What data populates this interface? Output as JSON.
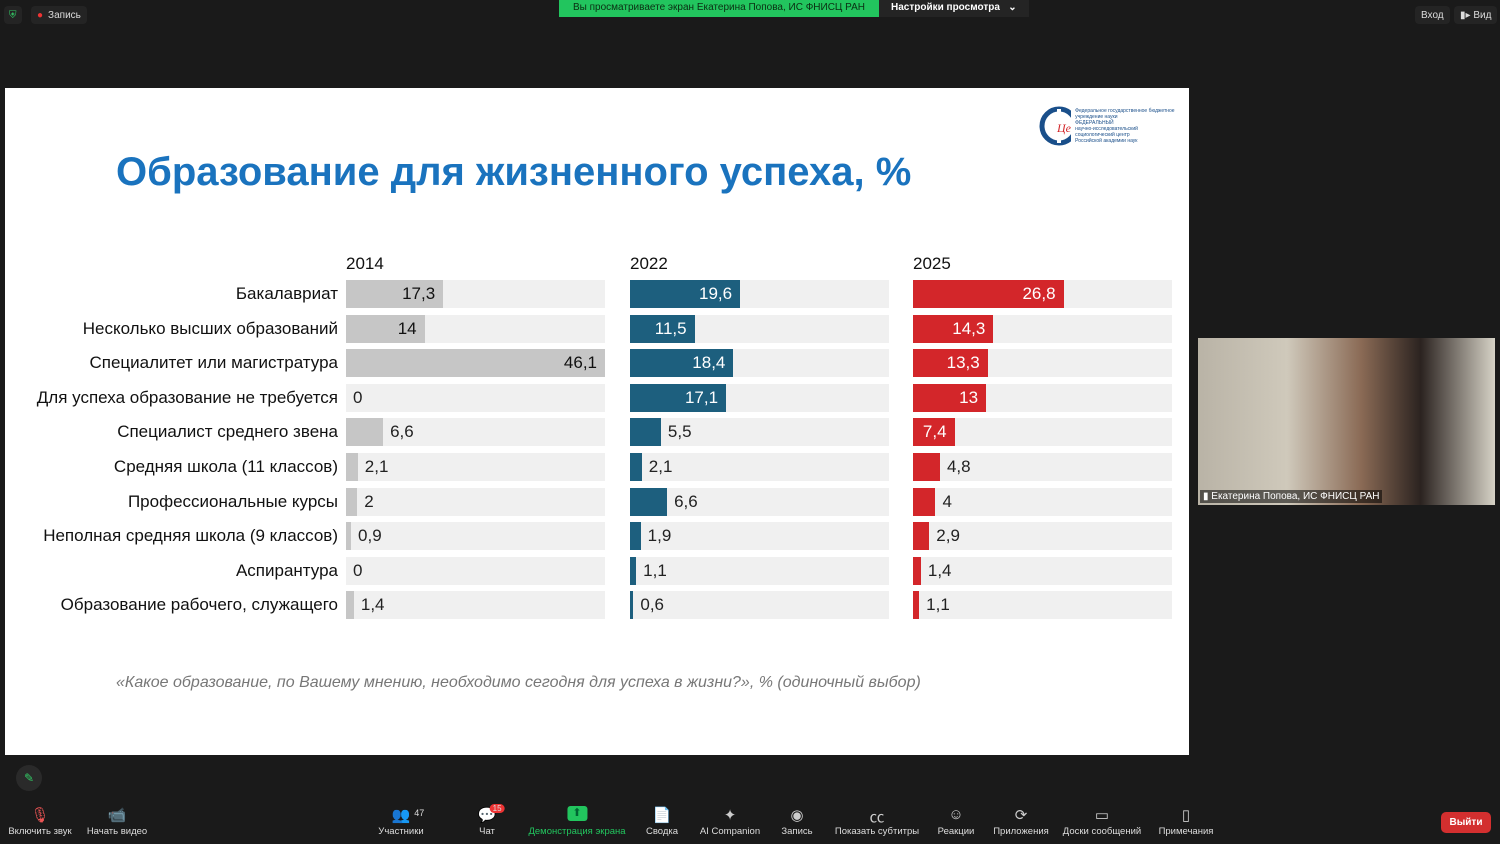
{
  "topbar": {
    "record_label": "Запись",
    "banner_text": "Вы просматриваете экран Екатерина Попова, ИС ФНИСЦ РАН",
    "view_settings": "Настройки просмотра",
    "signin": "Вход",
    "view": "Вид"
  },
  "slide": {
    "title": "Образование для жизненного успеха, %",
    "note": "«Какое образование, по Вашему мнению, необходимо сегодня для успеха в жизни?», % (одиночный выбор)",
    "logo_text": [
      "Федеральное государственное бюджетное учреждение науки",
      "ФЕДЕРАЛЬНЫЙ",
      "научно-исследовательский",
      "социологический центр",
      "Российской академии наук"
    ]
  },
  "chart_data": {
    "type": "bar",
    "orientation": "horizontal",
    "xlim": [
      0,
      46.1
    ],
    "categories": [
      "Бакалавриат",
      "Несколько высших образований",
      "Специалитет или магистратура",
      "Для успеха образование не требуется",
      "Специалист среднего звена",
      "Средняя школа (11 классов)",
      "Профессиональные курсы",
      "Неполная средняя школа (9 классов)",
      "Аспирантура",
      "Образование рабочего, служащего"
    ],
    "series": [
      {
        "name": "2014",
        "color": "#c6c6c6",
        "values": [
          17.3,
          14,
          46.1,
          0,
          6.6,
          2.1,
          2,
          0.9,
          0,
          1.4
        ],
        "labels": [
          "17,3",
          "14",
          "46,1",
          "0",
          "6,6",
          "2,1",
          "2",
          "0,9",
          "0",
          "1,4"
        ]
      },
      {
        "name": "2022",
        "color": "#1d5f7e",
        "values": [
          19.6,
          11.5,
          18.4,
          17.1,
          5.5,
          2.1,
          6.6,
          1.9,
          1.1,
          0.6
        ],
        "labels": [
          "19,6",
          "11,5",
          "18,4",
          "17,1",
          "5,5",
          "2,1",
          "6,6",
          "1,9",
          "1,1",
          "0,6"
        ]
      },
      {
        "name": "2025",
        "color": "#d3262a",
        "values": [
          26.8,
          14.3,
          13.3,
          13,
          7.4,
          4.8,
          4,
          2.9,
          1.4,
          1.1
        ],
        "labels": [
          "26,8",
          "14,3",
          "13,3",
          "13",
          "7,4",
          "4,8",
          "4",
          "2,9",
          "1,4",
          "1,1"
        ]
      }
    ]
  },
  "video": {
    "name": "Екатерина Попова, ИС ФНИСЦ РАН"
  },
  "toolbar": {
    "items": [
      {
        "label": "Включить звук",
        "icon": "mic-muted-icon"
      },
      {
        "label": "Начать видео",
        "icon": "video-off-icon"
      },
      {
        "label": "Участники",
        "icon": "participants-icon",
        "count": "47"
      },
      {
        "label": "Чат",
        "icon": "chat-icon",
        "badge": "15"
      },
      {
        "label": "Демонстрация экрана",
        "icon": "share-screen-icon"
      },
      {
        "label": "Сводка",
        "icon": "summary-icon"
      },
      {
        "label": "AI Companion",
        "icon": "ai-companion-icon"
      },
      {
        "label": "Запись",
        "icon": "record-icon"
      },
      {
        "label": "Показать субтитры",
        "icon": "captions-icon"
      },
      {
        "label": "Реакции",
        "icon": "reactions-icon"
      },
      {
        "label": "Приложения",
        "icon": "apps-icon"
      },
      {
        "label": "Доски сообщений",
        "icon": "whiteboard-icon"
      },
      {
        "label": "Примечания",
        "icon": "notes-icon"
      }
    ],
    "leave": "Выйти"
  }
}
